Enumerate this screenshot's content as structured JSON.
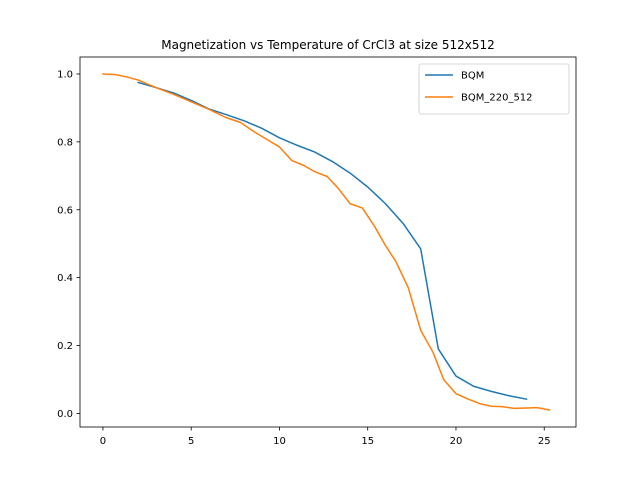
{
  "chart_data": {
    "type": "line",
    "title": "Magnetization vs Temperature of CrCl3 at size 512x512",
    "xlabel": "",
    "ylabel": "",
    "xlim": [
      -1.3,
      26.8
    ],
    "ylim": [
      -0.04,
      1.05
    ],
    "xticks": [
      0,
      5,
      10,
      15,
      20,
      25
    ],
    "xtick_labels": [
      "0",
      "5",
      "10",
      "15",
      "20",
      "25"
    ],
    "yticks": [
      0.0,
      0.2,
      0.4,
      0.6,
      0.8,
      1.0
    ],
    "ytick_labels": [
      "0.0",
      "0.2",
      "0.4",
      "0.6",
      "0.8",
      "1.0"
    ],
    "grid": false,
    "legend_position": "top-right",
    "series": [
      {
        "name": "BQM",
        "color": "#1f77b4",
        "x": [
          2.0,
          3.0,
          4.0,
          5.0,
          6.0,
          7.0,
          8.0,
          9.0,
          10.0,
          11.0,
          12.0,
          13.0,
          14.0,
          15.0,
          16.0,
          17.0,
          18.0,
          19.0,
          20.0,
          21.0,
          22.0,
          23.0,
          24.0
        ],
        "y": [
          0.975,
          0.96,
          0.944,
          0.922,
          0.897,
          0.88,
          0.862,
          0.84,
          0.812,
          0.79,
          0.77,
          0.742,
          0.708,
          0.667,
          0.618,
          0.56,
          0.485,
          0.19,
          0.11,
          0.08,
          0.065,
          0.052,
          0.042
        ]
      },
      {
        "name": "BQM_220_512",
        "color": "#ff7f0e",
        "x": [
          0.0,
          0.7,
          1.3,
          2.0,
          3.0,
          4.0,
          5.0,
          6.0,
          7.0,
          7.8,
          8.5,
          9.2,
          10.0,
          10.7,
          11.4,
          12.0,
          12.7,
          13.3,
          14.0,
          14.7,
          15.4,
          16.0,
          16.6,
          17.3,
          18.0,
          18.7,
          19.3,
          20.0,
          20.7,
          21.4,
          22.0,
          22.6,
          23.3,
          24.0,
          24.6,
          25.3
        ],
        "y": [
          1.0,
          0.998,
          0.992,
          0.982,
          0.96,
          0.94,
          0.918,
          0.896,
          0.871,
          0.857,
          0.832,
          0.81,
          0.785,
          0.745,
          0.73,
          0.712,
          0.698,
          0.665,
          0.618,
          0.605,
          0.55,
          0.495,
          0.447,
          0.37,
          0.245,
          0.18,
          0.1,
          0.058,
          0.042,
          0.028,
          0.021,
          0.02,
          0.015,
          0.016,
          0.017,
          0.01
        ]
      }
    ]
  }
}
